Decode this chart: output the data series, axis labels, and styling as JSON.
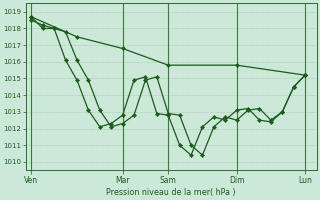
{
  "xlabel": "Pression niveau de la mer( hPa )",
  "bg_color": "#cce8d8",
  "line_color": "#1a5c1a",
  "grid_major_color": "#b8d4c0",
  "grid_minor_color": "#d4e8dc",
  "ylim": [
    1009.5,
    1019.5
  ],
  "ytick_vals": [
    1010,
    1011,
    1012,
    1013,
    1014,
    1015,
    1016,
    1017,
    1018,
    1019
  ],
  "xtick_labels": [
    "Ven",
    "Mar",
    "Sam",
    "Dim",
    "Lun"
  ],
  "xtick_positions": [
    0,
    8,
    12,
    18,
    24
  ],
  "xlim": [
    -0.5,
    25
  ],
  "vline_positions": [
    0,
    8,
    12,
    18,
    24
  ],
  "line_smooth": {
    "x": [
      0,
      4,
      8,
      12,
      18,
      24
    ],
    "y": [
      1018.7,
      1017.5,
      1016.8,
      1015.8,
      1015.8,
      1015.2
    ]
  },
  "line_mid": {
    "x": [
      0,
      1,
      2,
      3,
      4,
      5,
      6,
      7,
      8,
      9,
      10,
      11,
      12,
      13,
      14,
      15,
      16,
      17,
      18,
      19,
      20,
      21,
      22,
      23,
      24
    ],
    "y": [
      1018.5,
      1018.2,
      1018.0,
      1017.8,
      1016.1,
      1014.9,
      1013.1,
      1012.1,
      1012.3,
      1012.8,
      1014.9,
      1015.1,
      1012.9,
      1012.8,
      1011.0,
      1010.4,
      1012.1,
      1012.7,
      1012.5,
      1013.1,
      1013.2,
      1012.5,
      1013.0,
      1014.5,
      1015.2
    ]
  },
  "line_low": {
    "x": [
      0,
      1,
      2,
      3,
      4,
      5,
      6,
      7,
      8,
      9,
      10,
      11,
      12,
      13,
      14,
      15,
      16,
      17,
      18,
      19,
      20,
      21,
      22,
      23,
      24
    ],
    "y": [
      1018.7,
      1018.0,
      1018.0,
      1016.1,
      1014.9,
      1013.1,
      1012.1,
      1012.3,
      1012.8,
      1014.9,
      1015.1,
      1012.9,
      1012.8,
      1011.0,
      1010.4,
      1012.1,
      1012.7,
      1012.5,
      1013.1,
      1013.2,
      1012.5,
      1012.4,
      1013.0,
      1014.5,
      1015.2
    ]
  }
}
